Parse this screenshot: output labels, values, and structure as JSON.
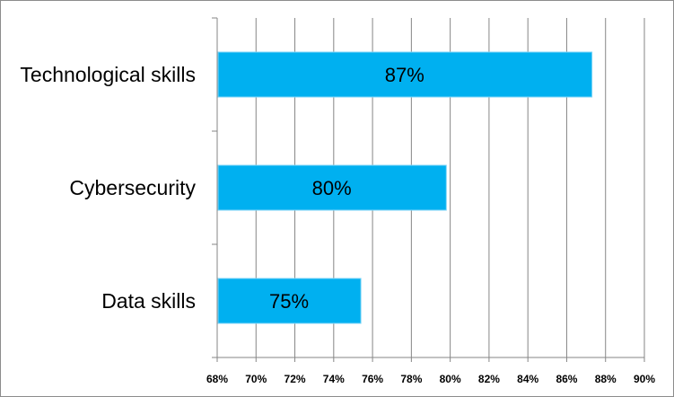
{
  "chart_data": {
    "type": "bar",
    "orientation": "horizontal",
    "categories": [
      "Technological skills",
      "Cybersecurity",
      "Data skills"
    ],
    "values": [
      87.3,
      79.8,
      75.4
    ],
    "data_labels": [
      "87%",
      "80%",
      "75%"
    ],
    "xlim": [
      68,
      90
    ],
    "x_tick_labels": [
      "68%",
      "70%",
      "72%",
      "74%",
      "76%",
      "78%",
      "80%",
      "82%",
      "84%",
      "86%",
      "88%",
      "90%"
    ],
    "grid": true,
    "legend": "none",
    "bar_color": "#00b0f0",
    "title": "",
    "xlabel": "",
    "ylabel": ""
  }
}
